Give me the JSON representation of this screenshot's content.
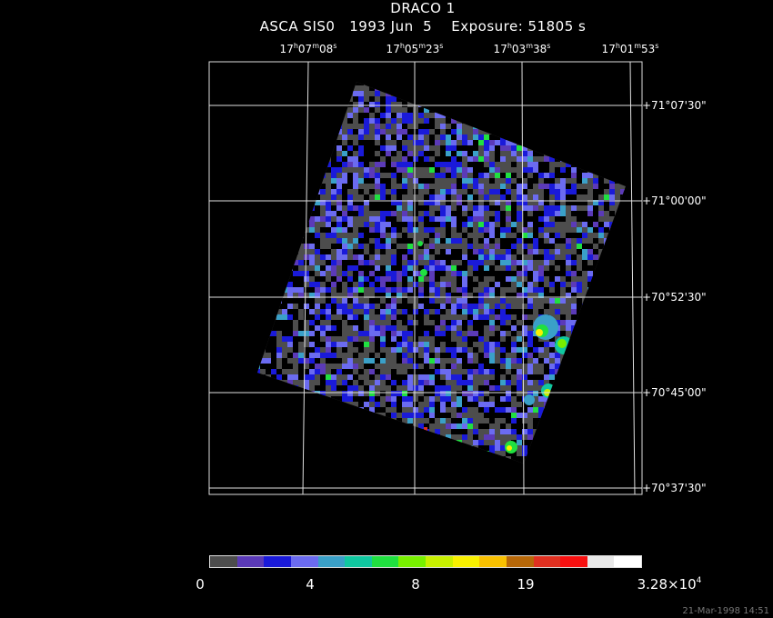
{
  "header": {
    "title": "DRACO 1",
    "subtitle": "ASCA SIS0   1993 Jun  5    Exposure: 51805 s"
  },
  "ra_labels": [
    {
      "h": "17",
      "m": "07",
      "s": "08"
    },
    {
      "h": "17",
      "m": "05",
      "s": "23"
    },
    {
      "h": "17",
      "m": "03",
      "s": "38"
    },
    {
      "h": "17",
      "m": "01",
      "s": "53"
    }
  ],
  "dec_labels": [
    "+71°07'30\"",
    "+71°00'00\"",
    "+70°52'30\"",
    "+70°45'00\"",
    "+70°37'30\""
  ],
  "colorbar": {
    "colors": [
      "#4d4d4d",
      "#5b3ab8",
      "#1a1ad9",
      "#6b6bf0",
      "#3aa0c8",
      "#10c8a0",
      "#20e040",
      "#78f000",
      "#c8f000",
      "#f8f000",
      "#f8c000",
      "#b86808",
      "#e03020",
      "#f81010",
      "#e8e8e8",
      "#ffffff"
    ],
    "labels": [
      {
        "text": "0"
      },
      {
        "text": "4"
      },
      {
        "text": "8"
      },
      {
        "text": "19"
      },
      {
        "text": "3.28×10",
        "exp": "4"
      }
    ]
  },
  "timestamp": "21-Mar-1998 14:51"
}
